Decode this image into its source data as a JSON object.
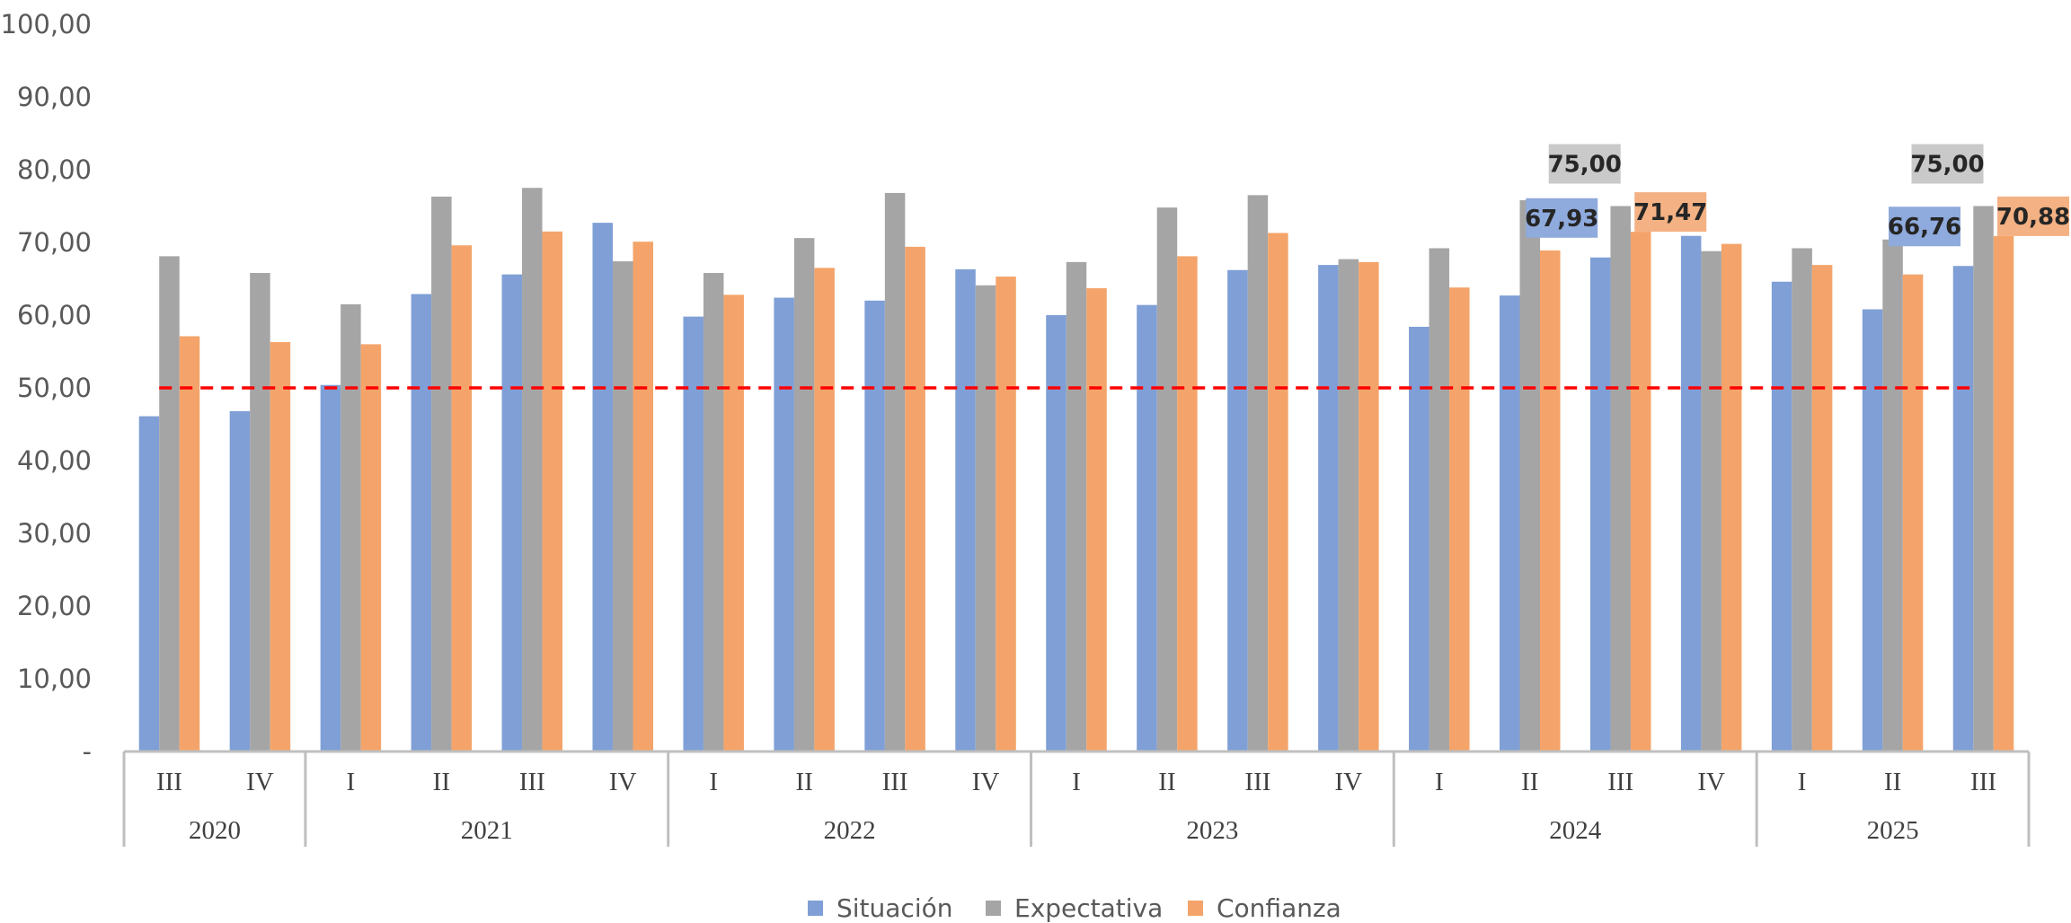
{
  "chart_data": {
    "type": "bar",
    "title": "",
    "xlabel": "",
    "ylabel": "",
    "ylim": [
      0,
      100
    ],
    "yticks": [
      "-",
      "10,00",
      "20,00",
      "30,00",
      "40,00",
      "50,00",
      "60,00",
      "70,00",
      "80,00",
      "90,00",
      "100,00"
    ],
    "categories": [
      "III",
      "IV",
      "I",
      "II",
      "III",
      "IV",
      "I",
      "II",
      "III",
      "IV",
      "I",
      "II",
      "III",
      "IV",
      "I",
      "II",
      "III",
      "IV",
      "I",
      "II",
      "III"
    ],
    "years": [
      {
        "label": "2020",
        "count": 2
      },
      {
        "label": "2021",
        "count": 4
      },
      {
        "label": "2022",
        "count": 4
      },
      {
        "label": "2023",
        "count": 4
      },
      {
        "label": "2024",
        "count": 4
      },
      {
        "label": "2025",
        "count": 3
      }
    ],
    "series": [
      {
        "name": "Situación",
        "color": "#7f9fd6",
        "values": [
          46.1,
          46.8,
          50.4,
          62.9,
          65.6,
          72.7,
          59.8,
          62.4,
          62.0,
          66.3,
          60.0,
          61.4,
          66.2,
          66.9,
          58.4,
          62.7,
          67.93,
          70.9,
          64.6,
          60.8,
          66.76
        ]
      },
      {
        "name": "Expectativa",
        "color": "#a5a5a5",
        "values": [
          68.1,
          65.8,
          61.5,
          76.3,
          77.5,
          67.4,
          65.8,
          70.6,
          76.8,
          64.1,
          67.3,
          74.8,
          76.5,
          67.7,
          69.2,
          75.8,
          75.0,
          68.8,
          69.2,
          70.4,
          75.0
        ]
      },
      {
        "name": "Confianza",
        "color": "#f4a46a",
        "values": [
          57.1,
          56.3,
          56.0,
          69.6,
          71.5,
          70.1,
          62.8,
          66.5,
          69.4,
          65.3,
          63.7,
          68.1,
          71.3,
          67.3,
          63.8,
          68.9,
          71.47,
          69.8,
          66.9,
          65.6,
          70.88
        ]
      }
    ],
    "reference_line": {
      "value": 50,
      "color": "#ff0000",
      "style": "dashed"
    },
    "data_labels": [
      {
        "series": 0,
        "index": 16,
        "text": "67,93",
        "bg": "#8faadc"
      },
      {
        "series": 1,
        "index": 16,
        "text": "75,00",
        "bg": "#c9c9c9"
      },
      {
        "series": 2,
        "index": 16,
        "text": "71,47",
        "bg": "#f4b183"
      },
      {
        "series": 0,
        "index": 20,
        "text": "66,76",
        "bg": "#8faadc"
      },
      {
        "series": 1,
        "index": 20,
        "text": "75,00",
        "bg": "#c9c9c9"
      },
      {
        "series": 2,
        "index": 20,
        "text": "70,88",
        "bg": "#f4b183"
      }
    ],
    "legend": {
      "position": "bottom"
    },
    "grid": false
  }
}
